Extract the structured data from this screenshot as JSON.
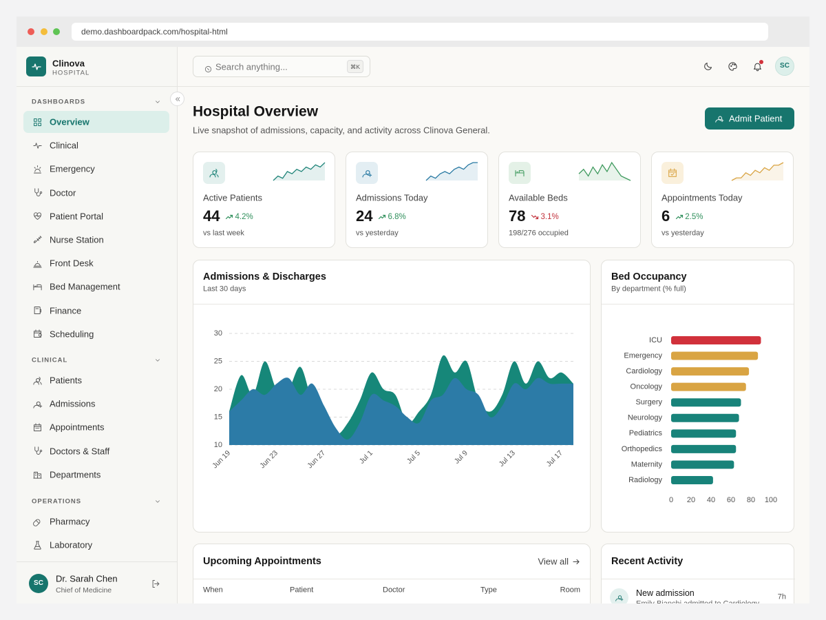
{
  "browser": {
    "url": "demo.dashboardpack.com/hospital-html"
  },
  "sidebar": {
    "brand": {
      "name": "Clinova",
      "tagline": "HOSPITAL"
    },
    "sections": [
      {
        "title": "DASHBOARDS",
        "items": [
          {
            "label": "Overview",
            "active": true
          },
          {
            "label": "Clinical"
          },
          {
            "label": "Emergency"
          },
          {
            "label": "Doctor"
          },
          {
            "label": "Patient Portal"
          },
          {
            "label": "Nurse Station"
          },
          {
            "label": "Front Desk"
          },
          {
            "label": "Bed Management"
          },
          {
            "label": "Finance"
          },
          {
            "label": "Scheduling"
          }
        ]
      },
      {
        "title": "CLINICAL",
        "items": [
          {
            "label": "Patients"
          },
          {
            "label": "Admissions"
          },
          {
            "label": "Appointments"
          },
          {
            "label": "Doctors & Staff"
          },
          {
            "label": "Departments"
          }
        ]
      },
      {
        "title": "OPERATIONS",
        "items": [
          {
            "label": "Pharmacy"
          },
          {
            "label": "Laboratory"
          }
        ]
      }
    ],
    "user": {
      "initials": "SC",
      "name": "Dr. Sarah Chen",
      "role": "Chief of Medicine"
    }
  },
  "topbar": {
    "search_placeholder": "Search anything...",
    "shortcut": "⌘K",
    "avatar": "SC"
  },
  "header": {
    "title": "Hospital Overview",
    "subtitle": "Live snapshot of admissions, capacity, and activity across Clinova General.",
    "button": "Admit Patient"
  },
  "kpis": [
    {
      "label": "Active Patients",
      "value": 44,
      "change": "4.2%",
      "trend": "up",
      "note": "vs last week",
      "color": "#1f8479",
      "sparkline": [
        3,
        5,
        4,
        7,
        6,
        8,
        7,
        9,
        8,
        10,
        9,
        11
      ]
    },
    {
      "label": "Admissions Today",
      "value": 24,
      "change": "6.8%",
      "trend": "up",
      "note": "vs yesterday",
      "color": "#2a7aa3",
      "sparkline": [
        2,
        4,
        3,
        5,
        6,
        5,
        7,
        8,
        7,
        9,
        10,
        10
      ]
    },
    {
      "label": "Available Beds",
      "value": 78,
      "change": "3.1%",
      "trend": "down",
      "note": "198/276 occupied",
      "color": "#3f9a5e",
      "sparkline": [
        6,
        8,
        5,
        9,
        6,
        10,
        7,
        11,
        8,
        5,
        4,
        3
      ]
    },
    {
      "label": "Appointments Today",
      "value": 6,
      "change": "2.5%",
      "trend": "up",
      "note": "vs yesterday",
      "color": "#d9a443",
      "sparkline": [
        2,
        3,
        3,
        5,
        4,
        6,
        5,
        7,
        6,
        8,
        8,
        9
      ]
    }
  ],
  "chart_data": [
    {
      "type": "area",
      "title": "Admissions & Discharges",
      "subtitle": "Last 30 days",
      "categories": [
        "Jun 19",
        null,
        null,
        null,
        "Jun 23",
        null,
        null,
        null,
        "Jun 27",
        null,
        null,
        null,
        "Jul 1",
        null,
        null,
        null,
        "Jul 5",
        null,
        null,
        null,
        "Jul 9",
        null,
        null,
        null,
        "Jul 13",
        null,
        null,
        null,
        "Jul 17",
        null
      ],
      "series": [
        {
          "color": "#168779",
          "values": [
            16,
            22.5,
            19,
            25,
            20,
            20,
            24,
            18,
            16,
            12,
            14,
            18,
            23,
            20,
            19,
            14,
            16,
            19,
            26,
            23,
            25,
            18,
            16,
            19,
            25,
            21,
            25,
            22,
            23,
            21
          ]
        },
        {
          "color": "#2c7ba7",
          "values": [
            16,
            18,
            20,
            19,
            21,
            22,
            19,
            21,
            17,
            13,
            11,
            14,
            19,
            18,
            17,
            15,
            14,
            18,
            19,
            22,
            20,
            19,
            15,
            17,
            21,
            20,
            22,
            21,
            21,
            21
          ]
        }
      ],
      "ylim": [
        10,
        30
      ],
      "yticks": [
        10,
        15,
        20,
        25,
        30
      ],
      "grid": true
    },
    {
      "type": "bar",
      "orientation": "horizontal",
      "title": "Bed Occupancy",
      "subtitle": "By department (% full)",
      "categories": [
        "ICU",
        "Emergency",
        "Cardiology",
        "Oncology",
        "Surgery",
        "Neurology",
        "Pediatrics",
        "Orthopedics",
        "Maternity",
        "Radiology"
      ],
      "values": [
        90,
        87,
        78,
        75,
        70,
        68,
        65,
        65,
        63,
        42
      ],
      "colors": [
        "#d1313b",
        "#d9a443",
        "#d9a443",
        "#d9a443",
        "#18837a",
        "#18837a",
        "#18837a",
        "#18837a",
        "#18837a",
        "#18837a"
      ],
      "xlim": [
        0,
        100
      ],
      "xticks": [
        0,
        20,
        40,
        60,
        80,
        100
      ]
    }
  ],
  "appointments": {
    "title": "Upcoming Appointments",
    "link": "View all",
    "columns": [
      "When",
      "Patient",
      "Doctor",
      "Type",
      "Room"
    ]
  },
  "activity": {
    "title": "Recent Activity",
    "items": [
      {
        "title": "New admission",
        "detail": "Emily Bianchi admitted to Cardiology",
        "time": "7h"
      }
    ]
  }
}
